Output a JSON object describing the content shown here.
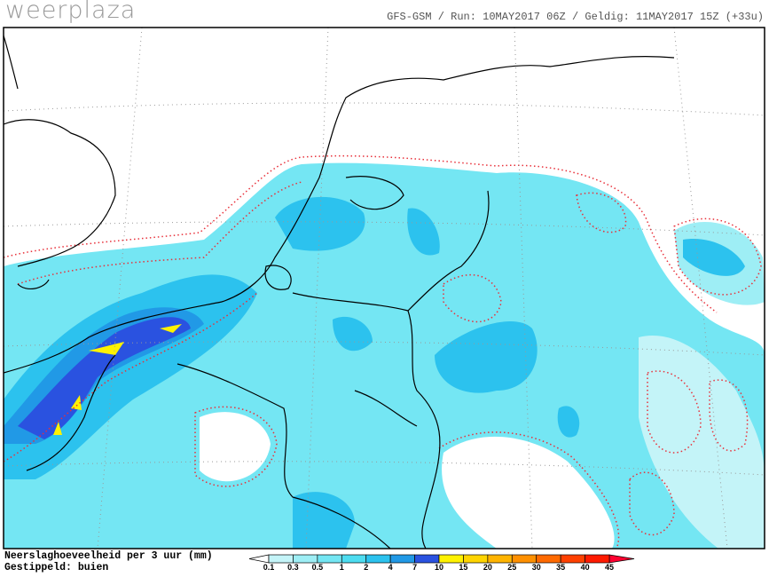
{
  "header": {
    "logo": "weerplaza",
    "run_info": "GFS-GSM / Run: 10MAY2017 06Z / Geldig: 11MAY2017 15Z (+33u)"
  },
  "legend": {
    "title": "Neerslaghoeveelheid per 3 uur (mm)",
    "note": "Gestippeld: buien",
    "ticks": [
      0.1,
      0.3,
      0.5,
      1,
      2,
      4,
      7,
      10,
      15,
      20,
      25,
      30,
      35,
      40,
      45
    ],
    "colors": [
      "#ffffff",
      "#c4f4f8",
      "#9eeef5",
      "#74e6f3",
      "#4ddcf0",
      "#2cc2ee",
      "#2199e6",
      "#2a52e0",
      "#fff200",
      "#ffd400",
      "#ffb400",
      "#ff9000",
      "#ff6a00",
      "#ff4000",
      "#ff1a00",
      "#ff0030"
    ]
  }
}
